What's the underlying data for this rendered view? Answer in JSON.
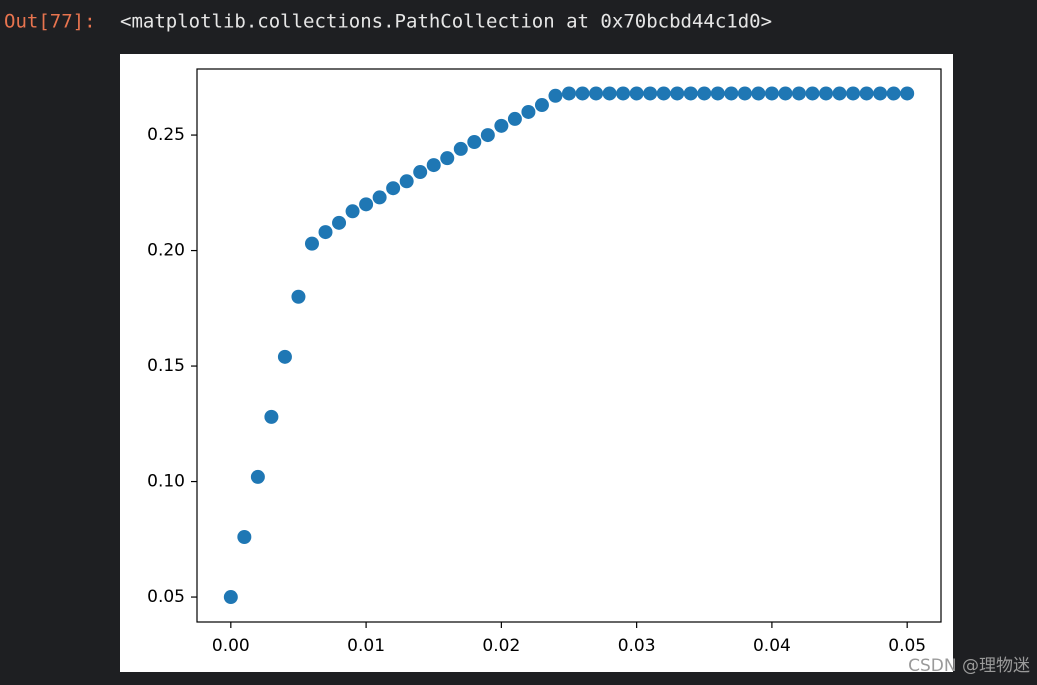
{
  "cell": {
    "prompt": "Out[77]:",
    "output": "<matplotlib.collections.PathCollection at 0x70bcbd44c1d0>"
  },
  "chart_data": {
    "type": "scatter",
    "color": "#1f77b4",
    "x": [
      0.0,
      0.001,
      0.002,
      0.003,
      0.004,
      0.005,
      0.006,
      0.007,
      0.008,
      0.009,
      0.01,
      0.011,
      0.012,
      0.013,
      0.014,
      0.015,
      0.016,
      0.017,
      0.018,
      0.019,
      0.02,
      0.021,
      0.022,
      0.023,
      0.024,
      0.025,
      0.026,
      0.027,
      0.028,
      0.029,
      0.03,
      0.031,
      0.032,
      0.033,
      0.034,
      0.035,
      0.036,
      0.037,
      0.038,
      0.039,
      0.04,
      0.041,
      0.042,
      0.043,
      0.044,
      0.045,
      0.046,
      0.047,
      0.048,
      0.049,
      0.05
    ],
    "values": [
      0.05,
      0.076,
      0.102,
      0.128,
      0.154,
      0.18,
      0.203,
      0.208,
      0.212,
      0.217,
      0.22,
      0.223,
      0.227,
      0.23,
      0.234,
      0.237,
      0.24,
      0.244,
      0.247,
      0.25,
      0.254,
      0.257,
      0.26,
      0.263,
      0.267,
      0.268,
      0.268,
      0.268,
      0.268,
      0.268,
      0.268,
      0.268,
      0.268,
      0.268,
      0.268,
      0.268,
      0.268,
      0.268,
      0.268,
      0.268,
      0.268,
      0.268,
      0.268,
      0.268,
      0.268,
      0.268,
      0.268,
      0.268,
      0.268,
      0.268,
      0.268
    ],
    "xlim": [
      -0.0025,
      0.0525
    ],
    "ylim": [
      0.0392,
      0.2786
    ],
    "xticks": [
      {
        "value": 0,
        "label": "0.00"
      },
      {
        "value": 0.01,
        "label": "0.01"
      },
      {
        "value": 0.02,
        "label": "0.02"
      },
      {
        "value": 0.03,
        "label": "0.03"
      },
      {
        "value": 0.04,
        "label": "0.04"
      },
      {
        "value": 0.05,
        "label": "0.05"
      }
    ],
    "yticks": [
      0.05,
      {
        "value": 0.1,
        "label": "0.10"
      },
      0.15,
      {
        "value": 0.2,
        "label": "0.20"
      },
      0.25
    ]
  },
  "watermark": "CSDN @理物迷"
}
